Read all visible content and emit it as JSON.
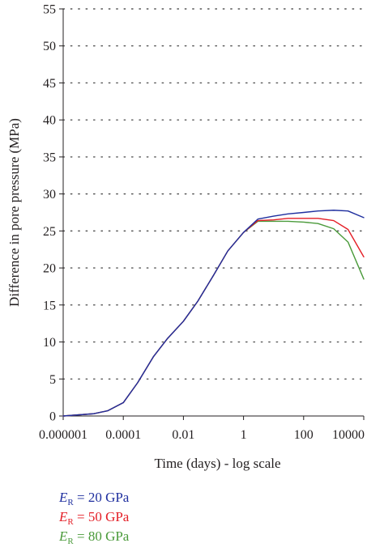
{
  "chart_data": {
    "type": "line",
    "xlabel": "Time (days) - log scale",
    "ylabel": "Difference in pore pressure (MPa)",
    "x_scale": "log",
    "xlim": [
      1e-06,
      10000
    ],
    "ylim": [
      0,
      55
    ],
    "x_tick_values": [
      1e-06,
      0.0001,
      0.01,
      1,
      100,
      10000
    ],
    "x_tick_labels": [
      "0.000001",
      "0.0001",
      "0.01",
      "1",
      "100",
      "10000"
    ],
    "y_ticks": [
      0,
      5,
      10,
      15,
      20,
      25,
      30,
      35,
      40,
      45,
      50,
      55
    ],
    "grid": "horizontal dotted",
    "legend_position": "bottom-left",
    "series": [
      {
        "name": "E_R = 20 GPa",
        "legend_symbol": "E",
        "legend_sub": "R",
        "legend_value": " = 20 GPa",
        "color": "#1f2f9f",
        "x": [
          1e-06,
          1e-05,
          3e-05,
          0.0001,
          0.0003,
          0.001,
          0.003,
          0.01,
          0.03,
          0.1,
          0.3,
          1,
          3,
          10,
          30,
          100,
          300,
          1000,
          3000,
          10000
        ],
        "y": [
          0,
          0.3,
          0.7,
          1.8,
          4.5,
          8,
          10.5,
          12.8,
          15.5,
          19,
          22.3,
          24.8,
          26.6,
          27,
          27.3,
          27.5,
          27.7,
          27.8,
          27.7,
          26.8
        ]
      },
      {
        "name": "E_R = 50 GPa",
        "legend_symbol": "E",
        "legend_sub": "R",
        "legend_value": " = 50 GPa",
        "color": "#e41e26",
        "x": [
          1e-06,
          1e-05,
          3e-05,
          0.0001,
          0.0003,
          0.001,
          0.003,
          0.01,
          0.03,
          0.1,
          0.3,
          1,
          3,
          10,
          30,
          100,
          300,
          1000,
          3000,
          10000
        ],
        "y": [
          0,
          0.3,
          0.7,
          1.8,
          4.5,
          8,
          10.5,
          12.8,
          15.5,
          19,
          22.3,
          24.8,
          26.4,
          26.5,
          26.7,
          26.7,
          26.7,
          26.4,
          25.2,
          21.5
        ]
      },
      {
        "name": "E_R = 80 GPa",
        "legend_symbol": "E",
        "legend_sub": "R",
        "legend_value": " = 80 GPa",
        "color": "#4a9a3a",
        "x": [
          1e-06,
          1e-05,
          3e-05,
          0.0001,
          0.0003,
          0.001,
          0.003,
          0.01,
          0.03,
          0.1,
          0.3,
          1,
          3,
          10,
          30,
          100,
          300,
          1000,
          3000,
          10000
        ],
        "y": [
          0,
          0.3,
          0.7,
          1.8,
          4.5,
          8,
          10.5,
          12.8,
          15.5,
          19,
          22.3,
          24.8,
          26.3,
          26.3,
          26.3,
          26.2,
          26,
          25.3,
          23.5,
          18.5
        ]
      }
    ]
  }
}
